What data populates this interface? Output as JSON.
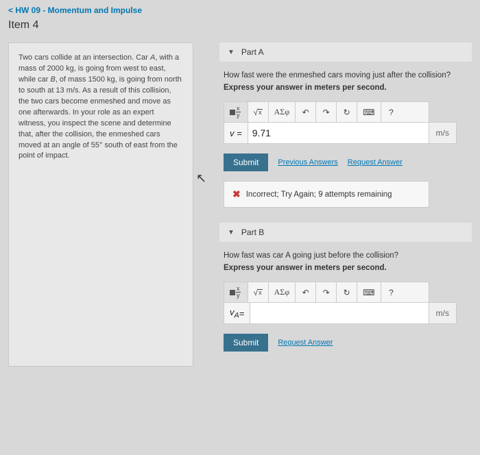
{
  "header": {
    "breadcrumb": "< HW 09 - Momentum and Impulse",
    "item": "Item 4"
  },
  "problem": {
    "text_pre": "Two cars collide at an intersection. Car ",
    "carA": "A",
    "text_mid1": ", with a mass of 2000 ",
    "u_kg1": "kg",
    "text_mid2": ", is going from west to east, while car ",
    "carB": "B",
    "text_mid3": ", of mass 1500 ",
    "u_kg2": "kg",
    "text_mid4": ", is going from north to south at 13 ",
    "u_ms": "m/s",
    "text_mid5": ". As a result of this collision, the two cars become enmeshed and move as one afterwards. In your role as an expert witness, you inspect the scene and determine that, after the collision, the enmeshed cars moved at an angle of 55° south of east from the point of impact."
  },
  "partA": {
    "title": "Part A",
    "question": "How fast were the enmeshed cars moving just after the collision?",
    "instruction": "Express your answer in meters per second.",
    "var": "v =",
    "value": "9.71",
    "unit": "m/s",
    "submit": "Submit",
    "prev": "Previous Answers",
    "req": "Request Answer",
    "fb_label": "Incorrect; Try Again; 9 attempts remaining"
  },
  "partB": {
    "title": "Part B",
    "q_pre": "How fast was car ",
    "q_A": "A",
    "q_post": " going just before the collision?",
    "instruction": "Express your answer in meters per second.",
    "var": "v_A =",
    "value": "",
    "unit": "m/s",
    "submit": "Submit",
    "req": "Request Answer"
  },
  "toolbar": {
    "greek": "ΑΣφ",
    "undo": "↶",
    "redo": "↷",
    "reset": "↻",
    "keyb": "⌨",
    "help": "?"
  }
}
